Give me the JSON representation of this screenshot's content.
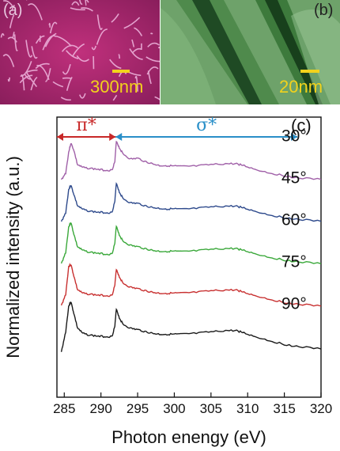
{
  "panel_a": {
    "label": "(a)",
    "scale": "300nm"
  },
  "panel_b": {
    "label": "(b)",
    "scale": "20nm"
  },
  "chart_data": {
    "type": "line",
    "panel_label": "(c)",
    "xlabel": "Photon enengy (eV)",
    "ylabel": "Normalized intensity (a.u.)",
    "xlim": [
      284,
      320
    ],
    "xticks": [
      285,
      290,
      295,
      300,
      305,
      310,
      315,
      320
    ],
    "regions": [
      {
        "label": "π*",
        "range": [
          284,
          292
        ],
        "color": "#c82828"
      },
      {
        "label": "σ*",
        "range": [
          292,
          320
        ],
        "color": "#2a8fc8"
      }
    ],
    "series": [
      {
        "name": "30°",
        "color": "#a060a8",
        "offset": 4,
        "points": [
          [
            284.6,
            0.15
          ],
          [
            285.2,
            0.3
          ],
          [
            285.6,
            0.75
          ],
          [
            285.9,
            0.95
          ],
          [
            286.3,
            0.8
          ],
          [
            286.8,
            0.48
          ],
          [
            287.5,
            0.42
          ],
          [
            288.5,
            0.4
          ],
          [
            289.5,
            0.38
          ],
          [
            290.5,
            0.36
          ],
          [
            291.5,
            0.36
          ],
          [
            291.9,
            0.55
          ],
          [
            292.1,
            1.0
          ],
          [
            292.5,
            0.85
          ],
          [
            293.0,
            0.72
          ],
          [
            294.0,
            0.6
          ],
          [
            295.0,
            0.62
          ],
          [
            296.0,
            0.55
          ],
          [
            297.0,
            0.5
          ],
          [
            298.0,
            0.46
          ],
          [
            299.0,
            0.46
          ],
          [
            300.0,
            0.45
          ],
          [
            301.0,
            0.44
          ],
          [
            303.0,
            0.45
          ],
          [
            305.0,
            0.48
          ],
          [
            307.0,
            0.5
          ],
          [
            308.5,
            0.5
          ],
          [
            309.5,
            0.46
          ],
          [
            311.0,
            0.38
          ],
          [
            313.0,
            0.3
          ],
          [
            315.0,
            0.24
          ],
          [
            317.0,
            0.19
          ],
          [
            320.0,
            0.16
          ]
        ]
      },
      {
        "name": "45°",
        "color": "#2e4a8c",
        "offset": 3,
        "points": [
          [
            284.6,
            0.15
          ],
          [
            285.2,
            0.35
          ],
          [
            285.6,
            0.85
          ],
          [
            285.9,
            0.95
          ],
          [
            286.3,
            0.75
          ],
          [
            286.8,
            0.5
          ],
          [
            287.5,
            0.42
          ],
          [
            288.5,
            0.38
          ],
          [
            289.5,
            0.36
          ],
          [
            290.5,
            0.35
          ],
          [
            291.5,
            0.35
          ],
          [
            291.9,
            0.6
          ],
          [
            292.1,
            1.0
          ],
          [
            292.5,
            0.8
          ],
          [
            293.0,
            0.66
          ],
          [
            294.0,
            0.56
          ],
          [
            295.0,
            0.55
          ],
          [
            296.0,
            0.5
          ],
          [
            297.0,
            0.46
          ],
          [
            298.0,
            0.44
          ],
          [
            299.0,
            0.43
          ],
          [
            300.0,
            0.43
          ],
          [
            301.0,
            0.42
          ],
          [
            303.0,
            0.44
          ],
          [
            305.0,
            0.47
          ],
          [
            307.0,
            0.49
          ],
          [
            308.5,
            0.49
          ],
          [
            309.5,
            0.45
          ],
          [
            311.0,
            0.38
          ],
          [
            313.0,
            0.3
          ],
          [
            315.0,
            0.24
          ],
          [
            317.0,
            0.2
          ],
          [
            320.0,
            0.16
          ]
        ]
      },
      {
        "name": "60°",
        "color": "#3aa83a",
        "offset": 2,
        "points": [
          [
            284.6,
            0.15
          ],
          [
            285.2,
            0.4
          ],
          [
            285.6,
            0.95
          ],
          [
            285.9,
            1.05
          ],
          [
            286.3,
            0.8
          ],
          [
            286.8,
            0.52
          ],
          [
            287.5,
            0.44
          ],
          [
            288.5,
            0.4
          ],
          [
            289.5,
            0.38
          ],
          [
            290.5,
            0.36
          ],
          [
            291.5,
            0.36
          ],
          [
            291.9,
            0.6
          ],
          [
            292.1,
            0.98
          ],
          [
            292.5,
            0.78
          ],
          [
            293.0,
            0.64
          ],
          [
            294.0,
            0.55
          ],
          [
            295.0,
            0.52
          ],
          [
            296.0,
            0.48
          ],
          [
            297.0,
            0.44
          ],
          [
            298.0,
            0.42
          ],
          [
            299.0,
            0.42
          ],
          [
            300.0,
            0.42
          ],
          [
            301.0,
            0.41
          ],
          [
            303.0,
            0.43
          ],
          [
            305.0,
            0.46
          ],
          [
            307.0,
            0.48
          ],
          [
            308.5,
            0.48
          ],
          [
            309.5,
            0.44
          ],
          [
            311.0,
            0.37
          ],
          [
            313.0,
            0.29
          ],
          [
            315.0,
            0.23
          ],
          [
            317.0,
            0.19
          ],
          [
            320.0,
            0.15
          ]
        ]
      },
      {
        "name": "75°",
        "color": "#c83030",
        "offset": 1,
        "points": [
          [
            284.6,
            0.15
          ],
          [
            285.2,
            0.4
          ],
          [
            285.6,
            1.0
          ],
          [
            285.9,
            1.05
          ],
          [
            286.3,
            0.8
          ],
          [
            286.8,
            0.5
          ],
          [
            287.5,
            0.42
          ],
          [
            288.5,
            0.4
          ],
          [
            289.5,
            0.38
          ],
          [
            290.5,
            0.37
          ],
          [
            291.5,
            0.37
          ],
          [
            291.9,
            0.6
          ],
          [
            292.1,
            0.95
          ],
          [
            292.5,
            0.78
          ],
          [
            293.0,
            0.64
          ],
          [
            294.0,
            0.55
          ],
          [
            295.0,
            0.52
          ],
          [
            296.0,
            0.48
          ],
          [
            297.0,
            0.44
          ],
          [
            298.0,
            0.42
          ],
          [
            299.0,
            0.42
          ],
          [
            300.0,
            0.42
          ],
          [
            301.0,
            0.42
          ],
          [
            303.0,
            0.44
          ],
          [
            305.0,
            0.47
          ],
          [
            307.0,
            0.49
          ],
          [
            308.5,
            0.49
          ],
          [
            309.5,
            0.44
          ],
          [
            311.0,
            0.37
          ],
          [
            313.0,
            0.29
          ],
          [
            315.0,
            0.22
          ],
          [
            317.0,
            0.18
          ],
          [
            320.0,
            0.14
          ]
        ]
      },
      {
        "name": "90°",
        "color": "#1a1a1a",
        "offset": 0,
        "points": [
          [
            284.6,
            0.05
          ],
          [
            285.2,
            0.5
          ],
          [
            285.6,
            1.05
          ],
          [
            285.9,
            1.15
          ],
          [
            286.3,
            0.9
          ],
          [
            286.8,
            0.58
          ],
          [
            287.5,
            0.46
          ],
          [
            288.5,
            0.42
          ],
          [
            289.5,
            0.4
          ],
          [
            290.5,
            0.39
          ],
          [
            291.5,
            0.39
          ],
          [
            291.9,
            0.62
          ],
          [
            292.1,
            1.0
          ],
          [
            292.5,
            0.8
          ],
          [
            293.0,
            0.66
          ],
          [
            294.0,
            0.57
          ],
          [
            295.0,
            0.54
          ],
          [
            296.0,
            0.5
          ],
          [
            297.0,
            0.46
          ],
          [
            298.0,
            0.44
          ],
          [
            299.0,
            0.44
          ],
          [
            300.0,
            0.44
          ],
          [
            301.0,
            0.44
          ],
          [
            303.0,
            0.46
          ],
          [
            305.0,
            0.49
          ],
          [
            307.0,
            0.52
          ],
          [
            308.5,
            0.52
          ],
          [
            309.5,
            0.47
          ],
          [
            311.0,
            0.39
          ],
          [
            313.0,
            0.3
          ],
          [
            315.0,
            0.22
          ],
          [
            317.0,
            0.17
          ],
          [
            320.0,
            0.12
          ]
        ]
      }
    ]
  }
}
